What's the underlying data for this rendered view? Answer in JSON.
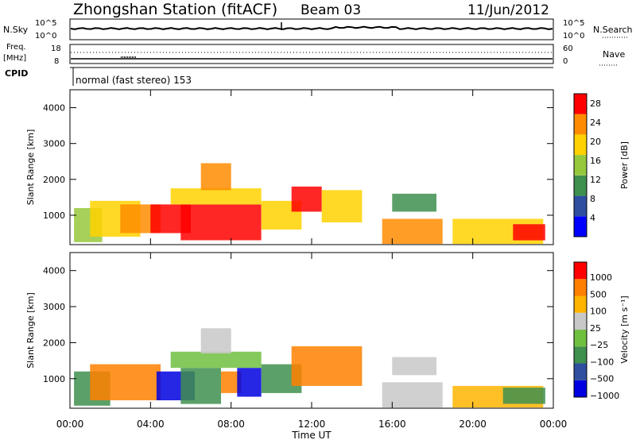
{
  "header": {
    "station": "Zhongshan Station (fitACF)",
    "beam": "Beam 03",
    "date": "11/Jun/2012"
  },
  "status_panel": {
    "nsky_label": "N.Sky",
    "nsky_ticks": [
      "10^5",
      "10^0"
    ],
    "nsearch_label": "N.Search",
    "nsearch_ticks": [
      "10^5",
      "10^0"
    ],
    "freq_label_1": "Freq.",
    "freq_label_2": "[MHz]",
    "freq_ticks": [
      "18",
      "8"
    ],
    "nave_label": "Nave",
    "nave_ticks": [
      "60",
      "0"
    ],
    "cpid_label": "CPID",
    "cpid_text": "normal (fast stereo) 153"
  },
  "chart_data": [
    {
      "type": "heatmap",
      "name": "power",
      "ylabel": "Slant Range [km]",
      "xlabel": "Time UT",
      "ylim": [
        180,
        4500
      ],
      "xlim": [
        0,
        24
      ],
      "yticks": [
        "1000",
        "2000",
        "3000",
        "4000"
      ],
      "xticks": [
        "00:00",
        "04:00",
        "08:00",
        "12:00",
        "16:00",
        "20:00",
        "00:00"
      ],
      "colorbar": {
        "label": "Power [dB]",
        "ticks": [
          "4",
          "8",
          "12",
          "16",
          "20",
          "24",
          "28"
        ],
        "range": [
          0,
          30
        ],
        "colors": [
          "#0000ff",
          "#2e4fa0",
          "#3f8f4f",
          "#96c83c",
          "#ffd200",
          "#ff8c00",
          "#ff0000"
        ]
      },
      "regions": [
        {
          "t0": 0.2,
          "t1": 1.6,
          "r0": 250,
          "r1": 1200,
          "level": 3
        },
        {
          "t0": 1.0,
          "t1": 3.5,
          "r0": 400,
          "r1": 1400,
          "level": 4
        },
        {
          "t0": 2.5,
          "t1": 4.5,
          "r0": 500,
          "r1": 1300,
          "level": 5
        },
        {
          "t0": 4.0,
          "t1": 6.0,
          "r0": 500,
          "r1": 1300,
          "level": 6
        },
        {
          "t0": 5.5,
          "t1": 9.5,
          "r0": 300,
          "r1": 1300,
          "level": 7
        },
        {
          "t0": 5.0,
          "t1": 9.5,
          "r0": 1300,
          "r1": 1750,
          "level": 4
        },
        {
          "t0": 6.5,
          "t1": 8.0,
          "r0": 1700,
          "r1": 2450,
          "level": 5
        },
        {
          "t0": 9.5,
          "t1": 11.5,
          "r0": 600,
          "r1": 1400,
          "level": 4
        },
        {
          "t0": 11.0,
          "t1": 12.5,
          "r0": 1100,
          "r1": 1800,
          "level": 6
        },
        {
          "t0": 12.5,
          "t1": 14.5,
          "r0": 800,
          "r1": 1700,
          "level": 4
        },
        {
          "t0": 15.5,
          "t1": 18.5,
          "r0": 200,
          "r1": 900,
          "level": 5
        },
        {
          "t0": 16.0,
          "t1": 18.2,
          "r0": 1100,
          "r1": 1600,
          "level": 2
        },
        {
          "t0": 19.0,
          "t1": 23.5,
          "r0": 200,
          "r1": 900,
          "level": 4
        },
        {
          "t0": 22.0,
          "t1": 23.6,
          "r0": 300,
          "r1": 750,
          "level": 6
        }
      ]
    },
    {
      "type": "heatmap",
      "name": "velocity",
      "ylabel": "Slant Range [km]",
      "xlabel": "Time UT",
      "ylim": [
        180,
        4500
      ],
      "xlim": [
        0,
        24
      ],
      "yticks": [
        "1000",
        "2000",
        "3000",
        "4000"
      ],
      "xticks": [
        "00:00",
        "04:00",
        "08:00",
        "12:00",
        "16:00",
        "20:00",
        "00:00"
      ],
      "colorbar": {
        "label": "Velocity [m s⁻¹]",
        "ticks": [
          "1000",
          "500",
          "100",
          "25",
          "−25",
          "−100",
          "−500",
          "−1000"
        ],
        "colors": [
          "#0000e0",
          "#2e4fa0",
          "#3f8f4f",
          "#70c040",
          "#c8c8c8",
          "#ffb400",
          "#ff8000",
          "#ff0000"
        ]
      },
      "regions": [
        {
          "t0": 0.2,
          "t1": 2.0,
          "r0": 250,
          "r1": 1200,
          "level": 2
        },
        {
          "t0": 1.0,
          "t1": 4.5,
          "r0": 400,
          "r1": 1400,
          "level": 6
        },
        {
          "t0": 4.3,
          "t1": 6.2,
          "r0": 400,
          "r1": 1200,
          "level": 0
        },
        {
          "t0": 5.5,
          "t1": 7.5,
          "r0": 300,
          "r1": 1300,
          "level": 2
        },
        {
          "t0": 7.5,
          "t1": 8.5,
          "r0": 600,
          "r1": 1200,
          "level": 6
        },
        {
          "t0": 8.3,
          "t1": 9.5,
          "r0": 500,
          "r1": 1300,
          "level": 0
        },
        {
          "t0": 5.0,
          "t1": 9.5,
          "r0": 1300,
          "r1": 1750,
          "level": 3
        },
        {
          "t0": 6.5,
          "t1": 8.0,
          "r0": 1700,
          "r1": 2400,
          "level": 4
        },
        {
          "t0": 9.5,
          "t1": 11.5,
          "r0": 600,
          "r1": 1400,
          "level": 2
        },
        {
          "t0": 11.0,
          "t1": 14.5,
          "r0": 800,
          "r1": 1900,
          "level": 6
        },
        {
          "t0": 15.5,
          "t1": 18.5,
          "r0": 200,
          "r1": 900,
          "level": 4
        },
        {
          "t0": 16.0,
          "t1": 18.2,
          "r0": 1100,
          "r1": 1600,
          "level": 4
        },
        {
          "t0": 19.0,
          "t1": 23.5,
          "r0": 200,
          "r1": 800,
          "level": 5
        },
        {
          "t0": 21.5,
          "t1": 23.6,
          "r0": 300,
          "r1": 750,
          "level": 2
        }
      ]
    }
  ]
}
